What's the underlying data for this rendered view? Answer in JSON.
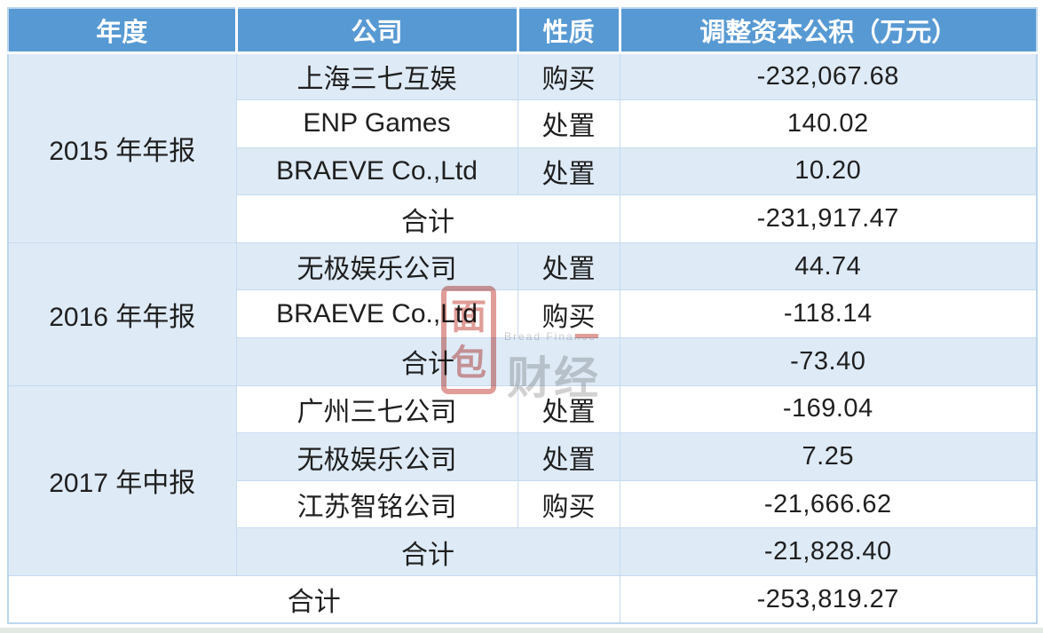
{
  "colors": {
    "header_bg": "#5799D3",
    "band_row_bg": "#DEEAF6",
    "grid_border": "#C7DCF0",
    "watermark_red": "#C23B32",
    "watermark_gray": "#A4A4A4"
  },
  "table": {
    "header": {
      "year": "年度",
      "company": "公司",
      "nature": "性质",
      "value": "调整资本公积（万元）"
    },
    "sections": [
      {
        "year": "2015 年年报",
        "rows": [
          {
            "company": "上海三七互娱",
            "nature": "购买",
            "value": "-232,067.68"
          },
          {
            "company": "ENP Games",
            "nature": "处置",
            "value": "140.02"
          },
          {
            "company": "BRAEVE Co.,Ltd",
            "nature": "处置",
            "value": "10.20"
          }
        ],
        "subtotal": {
          "label": "合计",
          "value": "-231,917.47"
        }
      },
      {
        "year": "2016 年年报",
        "rows": [
          {
            "company": "无极娱乐公司",
            "nature": "处置",
            "value": "44.74"
          },
          {
            "company": "BRAEVE Co.,Ltd",
            "nature": "购买",
            "value": "-118.14"
          }
        ],
        "subtotal": {
          "label": "合计",
          "value": "-73.40"
        }
      },
      {
        "year": "2017 年中报",
        "rows": [
          {
            "company": "广州三七公司",
            "nature": "处置",
            "value": "-169.04"
          },
          {
            "company": "无极娱乐公司",
            "nature": "处置",
            "value": "7.25"
          },
          {
            "company": "江苏智铭公司",
            "nature": "购买",
            "value": "-21,666.62"
          }
        ],
        "subtotal": {
          "label": "合计",
          "value": "-21,828.40"
        }
      }
    ],
    "grand_total": {
      "label": "合计",
      "value": "-253,819.27"
    }
  },
  "watermark": {
    "logo_top": "面",
    "logo_bottom": "包",
    "brand_en": "Bread Finance",
    "brand_cn": "财经"
  },
  "chart_data": {
    "type": "table",
    "title": "调整资本公积（万元）",
    "columns": [
      "年度",
      "公司",
      "性质",
      "调整资本公积（万元）"
    ],
    "rows": [
      [
        "2015 年年报",
        "上海三七互娱",
        "购买",
        -232067.68
      ],
      [
        "2015 年年报",
        "ENP Games",
        "处置",
        140.02
      ],
      [
        "2015 年年报",
        "BRAEVE Co.,Ltd",
        "处置",
        10.2
      ],
      [
        "2015 年年报",
        "合计",
        "",
        -231917.47
      ],
      [
        "2016 年年报",
        "无极娱乐公司",
        "处置",
        44.74
      ],
      [
        "2016 年年报",
        "BRAEVE Co.,Ltd",
        "购买",
        -118.14
      ],
      [
        "2016 年年报",
        "合计",
        "",
        -73.4
      ],
      [
        "2017 年中报",
        "广州三七公司",
        "处置",
        -169.04
      ],
      [
        "2017 年中报",
        "无极娱乐公司",
        "处置",
        7.25
      ],
      [
        "2017 年中报",
        "江苏智铭公司",
        "购买",
        -21666.62
      ],
      [
        "2017 年中报",
        "合计",
        "",
        -21828.4
      ],
      [
        "合计",
        "",
        "",
        -253819.27
      ]
    ]
  }
}
